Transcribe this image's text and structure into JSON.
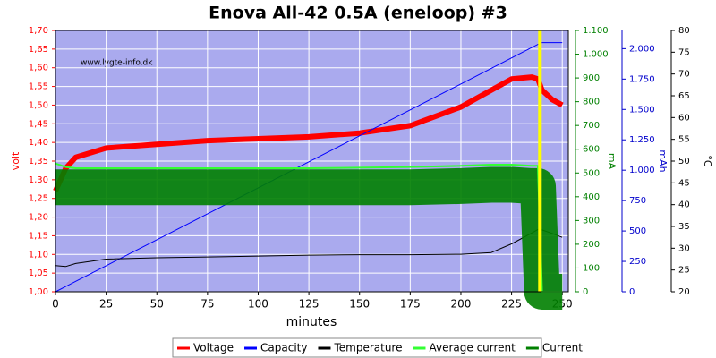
{
  "chart_data": {
    "type": "line",
    "title": "Enova All-42 0.5A (eneloop) #3",
    "watermark": "www.lygte-info.dk",
    "x_label": "minutes",
    "y_label": "volt",
    "y2_label": "mA",
    "y3_label": "mAh",
    "y4_label": "°C",
    "x": [
      0,
      5,
      10,
      25,
      50,
      75,
      100,
      125,
      150,
      175,
      200,
      215,
      225,
      235,
      238,
      240,
      245,
      250
    ],
    "xlim": [
      0,
      253
    ],
    "xticks": [
      0,
      25,
      50,
      75,
      100,
      125,
      150,
      175,
      200,
      225,
      250
    ],
    "ylim": [
      1.0,
      1.7
    ],
    "yticks": [
      {
        "value": 1.0,
        "label": "1,00"
      },
      {
        "value": 1.05,
        "label": "1,05"
      },
      {
        "value": 1.1,
        "label": "1,10"
      },
      {
        "value": 1.15,
        "label": "1,15"
      },
      {
        "value": 1.2,
        "label": "1,20"
      },
      {
        "value": 1.25,
        "label": "1,25"
      },
      {
        "value": 1.3,
        "label": "1,30"
      },
      {
        "value": 1.35,
        "label": "1,35"
      },
      {
        "value": 1.4,
        "label": "1,40"
      },
      {
        "value": 1.45,
        "label": "1,45"
      },
      {
        "value": 1.5,
        "label": "1,50"
      },
      {
        "value": 1.55,
        "label": "1,55"
      },
      {
        "value": 1.6,
        "label": "1,60"
      },
      {
        "value": 1.65,
        "label": "1,65"
      },
      {
        "value": 1.7,
        "label": "1,70"
      }
    ],
    "y2lim": [
      0,
      1100
    ],
    "y2ticks": [
      0,
      100,
      200,
      300,
      400,
      500,
      600,
      700,
      800,
      900,
      {
        "value": 1000,
        "label": "1.000"
      },
      {
        "value": 1100,
        "label": "1.100"
      }
    ],
    "y3lim": [
      0,
      2150
    ],
    "y3ticks": [
      0,
      250,
      500,
      750,
      {
        "value": 1000,
        "label": "1.000"
      },
      {
        "value": 1250,
        "label": "1.250"
      },
      {
        "value": 1500,
        "label": "1.500"
      },
      {
        "value": 1750,
        "label": "1.750"
      },
      {
        "value": 2000,
        "label": "2.000"
      }
    ],
    "y4lim": [
      20,
      80
    ],
    "y4ticks": [
      20,
      25,
      30,
      35,
      40,
      45,
      50,
      55,
      60,
      65,
      70,
      75,
      80
    ],
    "grid": true,
    "legend": "bottom",
    "series": [
      {
        "name": "Voltage",
        "color": "#ff0000",
        "axis": "y",
        "line_width": 6,
        "values": [
          1.27,
          1.33,
          1.36,
          1.385,
          1.395,
          1.405,
          1.41,
          1.415,
          1.425,
          1.445,
          1.495,
          1.54,
          1.57,
          1.575,
          1.57,
          1.54,
          1.515,
          1.5
        ]
      },
      {
        "name": "Capacity",
        "color": "#0000ff",
        "axis": "y3",
        "line_width": 1,
        "values": [
          0,
          43,
          86,
          214,
          428,
          641,
          855,
          1069,
          1283,
          1496,
          1710,
          1838,
          1924,
          2009,
          2035,
          2050,
          2050,
          2050
        ]
      },
      {
        "name": "Temperature",
        "color": "#000000",
        "axis": "y4",
        "line_width": 1,
        "values": [
          26,
          25.8,
          26.5,
          27.5,
          27.8,
          28,
          28.2,
          28.4,
          28.5,
          28.5,
          28.6,
          29,
          31,
          33.5,
          34.3,
          34.2,
          33.4,
          32.5
        ]
      },
      {
        "name": "Current",
        "color": "#008000",
        "axis": "y2",
        "line_width": 40,
        "values": [
          440,
          440,
          440,
          440,
          440,
          440,
          440,
          440,
          440,
          440,
          445,
          450,
          450,
          445,
          445,
          0,
          0,
          0
        ]
      },
      {
        "name": "Average current",
        "color": "#33ff33",
        "axis": "y2",
        "line_width": 2,
        "values": [
          540,
          525,
          520,
          520,
          520,
          520,
          520,
          520,
          522,
          525,
          530,
          535,
          535,
          530,
          530,
          0,
          0,
          0
        ]
      }
    ]
  }
}
